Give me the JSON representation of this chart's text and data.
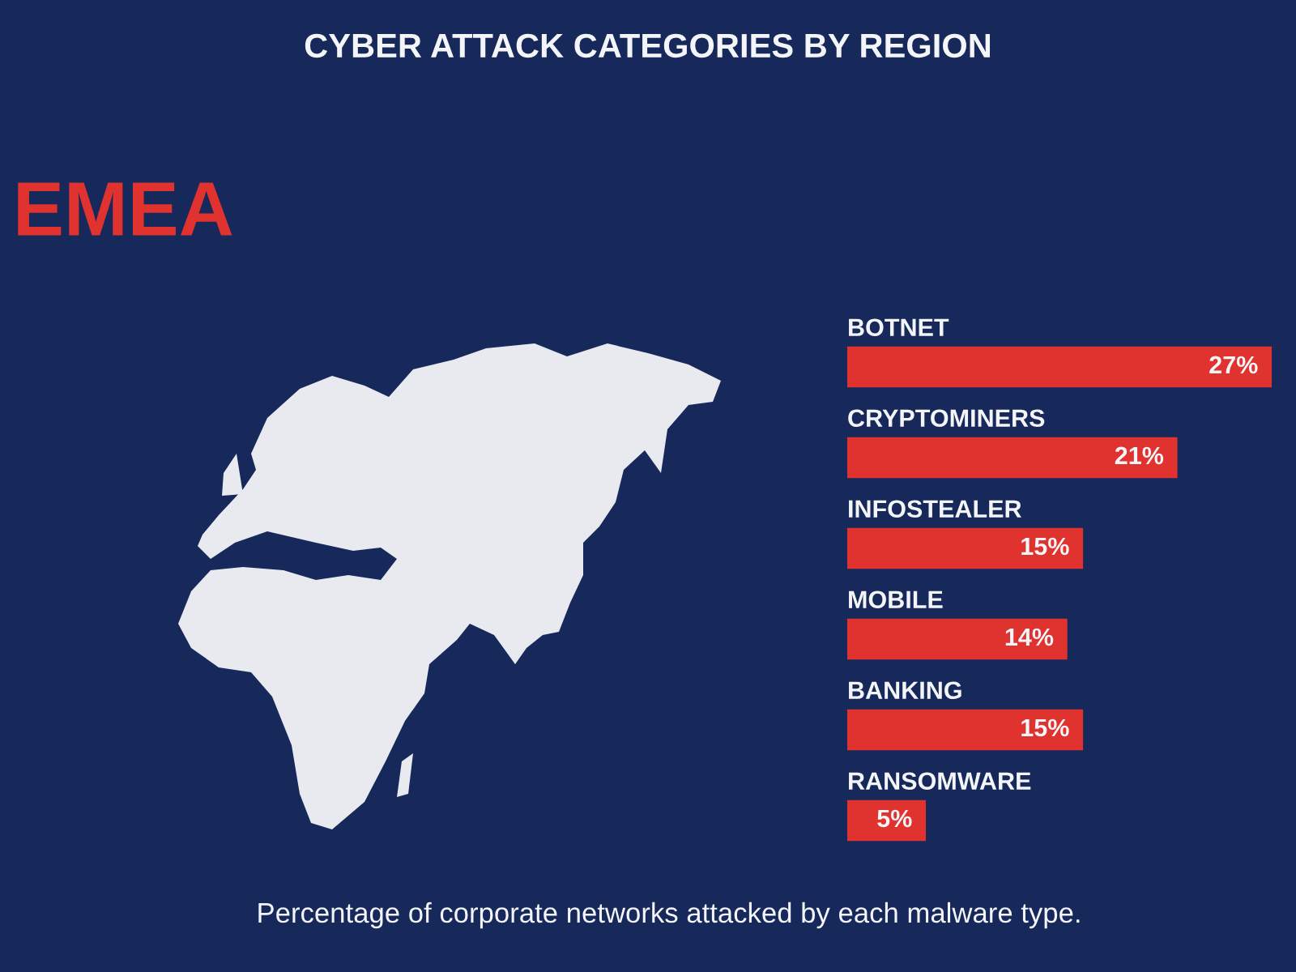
{
  "chart_data": {
    "type": "bar",
    "orientation": "horizontal",
    "title": "CYBER ATTACK CATEGORIES BY REGION",
    "subtitle": "EMEA",
    "categories": [
      "BOTNET",
      "CRYPTOMINERS",
      "INFOSTEALER",
      "MOBILE",
      "BANKING",
      "RANSOMWARE"
    ],
    "values": [
      27,
      21,
      15,
      14,
      15,
      5
    ],
    "value_labels": [
      "27%",
      "21%",
      "15%",
      "14%",
      "15%",
      "5%"
    ],
    "color": "#e0332f",
    "tick_labels": false,
    "annotations": [
      "Percentage of corporate networks attacked by each malware type."
    ]
  }
}
